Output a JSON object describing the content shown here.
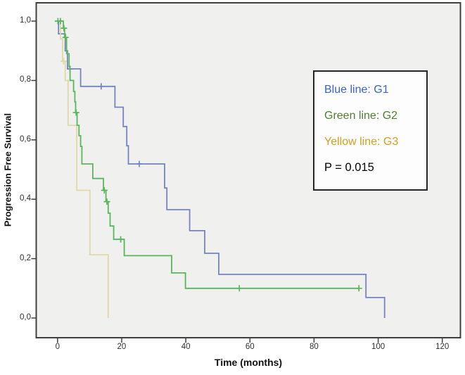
{
  "figure": {
    "background": "#ffffff",
    "plot_background": "#f0f0ee",
    "border_color": "#404040"
  },
  "legend": {
    "entries": [
      {
        "label": "Blue line: G1",
        "color": "#3a64c6"
      },
      {
        "label": "Green line: G2",
        "color": "#507f33"
      },
      {
        "label": "Yellow line: G3",
        "color": "#d0a01e"
      }
    ],
    "p_value": "P = 0.015"
  },
  "chart_data": {
    "type": "line",
    "subtype": "kaplan-meier-step",
    "title": "",
    "xlabel": "Time (months)",
    "ylabel": "Progression Free Survival",
    "xlim": [
      0,
      120
    ],
    "ylim": [
      0.0,
      1.0
    ],
    "x_ticks": [
      0,
      20,
      40,
      60,
      80,
      100,
      120
    ],
    "x_tick_labels": [
      "0",
      "20",
      "40",
      "60",
      "80",
      "100",
      "120"
    ],
    "y_ticks": [
      0.0,
      0.2,
      0.4,
      0.6,
      0.8,
      1.0
    ],
    "y_tick_labels": [
      "0,0",
      "0,2",
      "0,4",
      "0,6",
      "0,8",
      "1,0"
    ],
    "grid": false,
    "legend_position": "upper-right-inside",
    "p_value": 0.015,
    "series": [
      {
        "name": "G1",
        "legend_label": "Blue line: G1",
        "color": "#7583c6",
        "steps": [
          [
            0,
            1.0
          ],
          [
            0.3,
            0.957
          ],
          [
            2.4,
            0.9
          ],
          [
            3.1,
            0.839
          ],
          [
            7.2,
            0.78
          ],
          [
            17.9,
            0.71
          ],
          [
            20.5,
            0.645
          ],
          [
            21.6,
            0.58
          ],
          [
            22.1,
            0.519
          ],
          [
            33.4,
            0.438
          ],
          [
            34.1,
            0.365
          ],
          [
            41.2,
            0.294
          ],
          [
            45.9,
            0.218
          ],
          [
            50.3,
            0.147
          ],
          [
            96.2,
            0.069
          ],
          [
            102.0,
            0.0
          ]
        ],
        "end_time": null,
        "censors": [
          [
            3.9,
            0.839
          ],
          [
            13.6,
            0.78
          ],
          [
            25.5,
            0.519
          ]
        ]
      },
      {
        "name": "G2",
        "legend_label": "Green line: G2",
        "color": "#57b85b",
        "steps": [
          [
            0,
            1.0
          ],
          [
            1.8,
            0.976
          ],
          [
            2.2,
            0.945
          ],
          [
            2.8,
            0.89
          ],
          [
            3.6,
            0.846
          ],
          [
            3.9,
            0.8
          ],
          [
            5.0,
            0.763
          ],
          [
            5.4,
            0.728
          ],
          [
            5.65,
            0.692
          ],
          [
            6.1,
            0.649
          ],
          [
            6.7,
            0.614
          ],
          [
            7.2,
            0.578
          ],
          [
            7.6,
            0.519
          ],
          [
            11.0,
            0.47
          ],
          [
            14.3,
            0.43
          ],
          [
            15.1,
            0.392
          ],
          [
            15.8,
            0.353
          ],
          [
            16.4,
            0.31
          ],
          [
            17.5,
            0.265
          ],
          [
            20.8,
            0.21
          ],
          [
            35.6,
            0.152
          ],
          [
            39.9,
            0.1
          ]
        ],
        "end_time": 94.2,
        "censors": [
          [
            0.1,
            1.0
          ],
          [
            0.9,
            1.0
          ],
          [
            2.0,
            0.976
          ],
          [
            2.5,
            0.945
          ],
          [
            5.8,
            0.692
          ],
          [
            14.6,
            0.43
          ],
          [
            15.4,
            0.392
          ],
          [
            19.7,
            0.265
          ],
          [
            56.7,
            0.1
          ],
          [
            94.0,
            0.1
          ]
        ]
      },
      {
        "name": "G3",
        "legend_label": "Yellow line: G3",
        "color": "#ded9a6",
        "steps": [
          [
            0,
            1.0
          ],
          [
            0.9,
            0.94
          ],
          [
            1.55,
            0.865
          ],
          [
            2.4,
            0.8
          ],
          [
            3.3,
            0.649
          ],
          [
            6.0,
            0.43
          ],
          [
            10.1,
            0.213
          ],
          [
            15.8,
            0.0
          ]
        ],
        "end_time": null,
        "censors": [
          [
            1.9,
            0.865
          ]
        ]
      }
    ]
  }
}
